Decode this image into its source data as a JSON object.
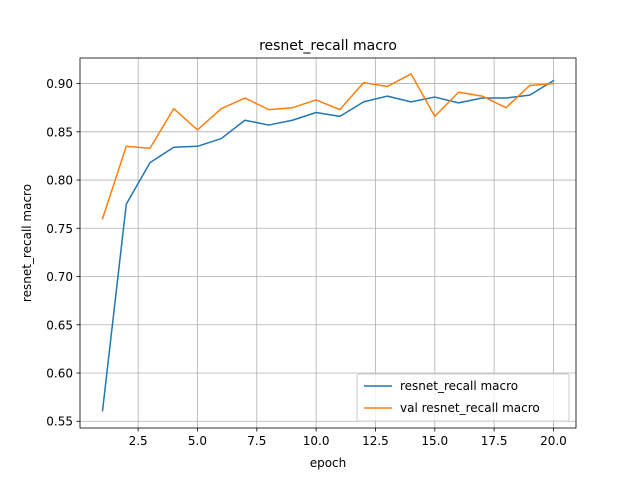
{
  "chart_data": {
    "type": "line",
    "title": "resnet_recall macro",
    "xlabel": "epoch",
    "ylabel": "resnet_recall macro",
    "xlim": [
      0.05,
      20.95
    ],
    "ylim": [
      0.543,
      0.9265
    ],
    "xticks": [
      2.5,
      5.0,
      7.5,
      10.0,
      12.5,
      15.0,
      17.5,
      20.0
    ],
    "xtick_labels": [
      "2.5",
      "5.0",
      "7.5",
      "10.0",
      "12.5",
      "15.0",
      "17.5",
      "20.0"
    ],
    "yticks": [
      0.55,
      0.6,
      0.65,
      0.7,
      0.75,
      0.8,
      0.85,
      0.9
    ],
    "ytick_labels": [
      "0.55",
      "0.60",
      "0.65",
      "0.70",
      "0.75",
      "0.80",
      "0.85",
      "0.90"
    ],
    "grid": true,
    "legend_position": "lower-right",
    "x": [
      1,
      2,
      3,
      4,
      5,
      6,
      7,
      8,
      9,
      10,
      11,
      12,
      13,
      14,
      15,
      16,
      17,
      18,
      19,
      20
    ],
    "series": [
      {
        "name": "resnet_recall macro",
        "color": "#1f77b4",
        "values": [
          0.561,
          0.775,
          0.818,
          0.834,
          0.835,
          0.843,
          0.862,
          0.857,
          0.862,
          0.87,
          0.866,
          0.881,
          0.887,
          0.881,
          0.886,
          0.88,
          0.885,
          0.885,
          0.888,
          0.903
        ]
      },
      {
        "name": "val resnet_recall macro",
        "color": "#ff7f0e",
        "values": [
          0.76,
          0.835,
          0.833,
          0.874,
          0.852,
          0.874,
          0.885,
          0.873,
          0.875,
          0.883,
          0.873,
          0.901,
          0.897,
          0.91,
          0.866,
          0.891,
          0.887,
          0.875,
          0.898,
          0.9
        ]
      }
    ]
  }
}
